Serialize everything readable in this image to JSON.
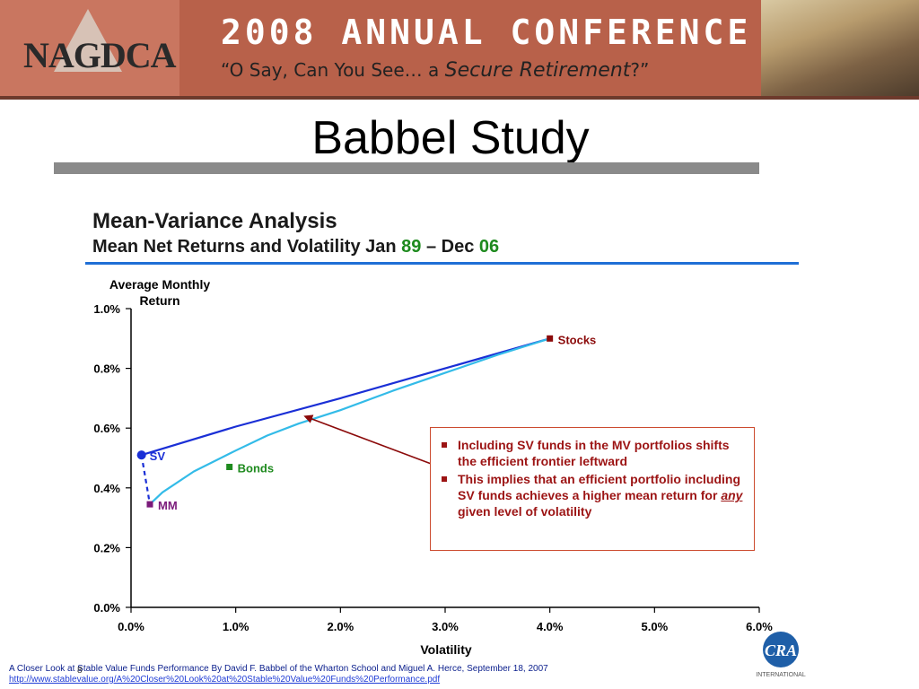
{
  "banner": {
    "logo": "NAGDCA",
    "conference_title": "2008 ANNUAL CONFERENCE",
    "tagline_start": "“O Say, Can You See… a ",
    "tagline_em": "Secure Retirement",
    "tagline_end": "?”"
  },
  "page": {
    "title": "Babbel Study",
    "heading": "Mean-Variance Analysis",
    "subheading_a": "Mean Net Returns and Volatility Jan ",
    "subheading_b": "89",
    "subheading_c": " – Dec ",
    "subheading_d": "06",
    "page_number": "8"
  },
  "callout": {
    "item1": "Including SV funds in the MV portfolios shifts the efficient frontier leftward",
    "item2_a": "This implies that an efficient portfolio including SV funds achieves a higher mean return for ",
    "item2_em": "any",
    "item2_b": " given level of volatility"
  },
  "footer": {
    "citation": "A Closer Look at Stable Value Funds Performance By David F. Babbel of the Wharton School and Miguel A. Herce, September 18, 2007",
    "link": "http://www.stablevalue.org/A%20Closer%20Look%20at%20Stable%20Value%20Funds%20Performance.pdf",
    "logo_text": "INTERNATIONAL",
    "logo_mark": "CRA"
  },
  "chart_data": {
    "type": "scatter",
    "ylabel": "Average Monthly Return",
    "xlabel": "Volatility",
    "xlim": [
      0,
      6
    ],
    "ylim": [
      0,
      1
    ],
    "x_ticks": [
      "0.0%",
      "1.0%",
      "2.0%",
      "3.0%",
      "4.0%",
      "5.0%",
      "6.0%"
    ],
    "y_ticks": [
      "0.0%",
      "0.2%",
      "0.4%",
      "0.6%",
      "0.8%",
      "1.0%"
    ],
    "x_tick_values": [
      0,
      1,
      2,
      3,
      4,
      5,
      6
    ],
    "y_tick_values": [
      0,
      0.2,
      0.4,
      0.6,
      0.8,
      1.0
    ],
    "points": [
      {
        "name": "Stocks",
        "x": 4.0,
        "y": 0.9,
        "color": "#8b0a0a",
        "marker": "square"
      },
      {
        "name": "Bonds",
        "x": 0.94,
        "y": 0.47,
        "color": "#1e8a1e",
        "marker": "square"
      },
      {
        "name": "MM",
        "x": 0.18,
        "y": 0.345,
        "color": "#7a1a7a",
        "marker": "square"
      },
      {
        "name": "SV",
        "x": 0.1,
        "y": 0.51,
        "color": "#1a2fd6",
        "marker": "circle"
      }
    ],
    "frontiers": [
      {
        "color": "#1a2fd6",
        "x": [
          0.1,
          1.0,
          2.0,
          3.0,
          4.0
        ],
        "y": [
          0.51,
          0.605,
          0.7,
          0.8,
          0.9
        ]
      },
      {
        "color": "#33bbe8",
        "x": [
          0.18,
          0.3,
          0.6,
          1.0,
          1.3,
          1.6,
          2.0,
          2.5,
          3.0,
          3.5,
          4.0
        ],
        "y": [
          0.345,
          0.385,
          0.455,
          0.525,
          0.575,
          0.615,
          0.66,
          0.725,
          0.785,
          0.845,
          0.9
        ]
      }
    ],
    "connector": {
      "color": "#1a2fd6",
      "from": [
        0.1,
        0.51
      ],
      "to": [
        0.18,
        0.345
      ]
    },
    "arrow_to": [
      1.63,
      0.645
    ],
    "grid": false
  }
}
